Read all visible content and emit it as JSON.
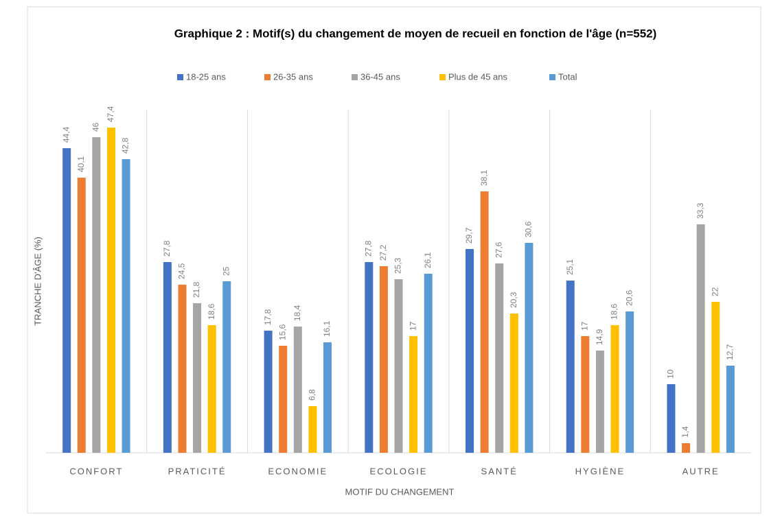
{
  "chart_data": {
    "type": "bar",
    "title": "Graphique 2 : Motif(s) du changement de moyen de recueil en fonction de l'âge (n=552)",
    "x_label": "MOTIF DU CHANGEMENT",
    "y_label": "TRANCHE D'ÂGE (%)",
    "categories": [
      "CONFORT",
      "PRATICITÉ",
      "ECONOMIE",
      "ECOLOGIE",
      "SANTÉ",
      "HYGIÈNE",
      "AUTRE"
    ],
    "ylim": [
      0,
      50
    ],
    "legend": "top",
    "series": [
      {
        "name": "18-25 ans",
        "color": "#4472c4",
        "values": [
          44.4,
          27.8,
          17.8,
          27.8,
          29.7,
          25.1,
          10
        ],
        "value_labels": [
          "44,4",
          "27,8",
          "17,8",
          "27,8",
          "29,7",
          "25,1",
          "10"
        ]
      },
      {
        "name": "26-35 ans",
        "color": "#ed7d31",
        "values": [
          40.1,
          24.5,
          15.6,
          27.2,
          38.1,
          17,
          1.4
        ],
        "value_labels": [
          "40,1",
          "24,5",
          "15,6",
          "27,2",
          "38,1",
          "17",
          "1,4"
        ]
      },
      {
        "name": "36-45 ans",
        "color": "#a5a5a5",
        "values": [
          46,
          21.8,
          18.4,
          25.3,
          27.6,
          14.9,
          33.3
        ],
        "value_labels": [
          "46",
          "21,8",
          "18,4",
          "25,3",
          "27,6",
          "14,9",
          "33,3"
        ]
      },
      {
        "name": "Plus de 45 ans",
        "color": "#ffc000",
        "values": [
          47.4,
          18.6,
          6.8,
          17,
          20.3,
          18.6,
          22
        ],
        "value_labels": [
          "47,4",
          "18,6",
          "6,8",
          "17",
          "20,3",
          "18,6",
          "22"
        ]
      },
      {
        "name": "Total",
        "color": "#5b9bd5",
        "values": [
          42.8,
          25,
          16.1,
          26.1,
          30.6,
          20.6,
          12.7
        ],
        "value_labels": [
          "42,8",
          "25",
          "16,1",
          "26,1",
          "30,6",
          "20,6",
          "12,7"
        ]
      }
    ]
  }
}
